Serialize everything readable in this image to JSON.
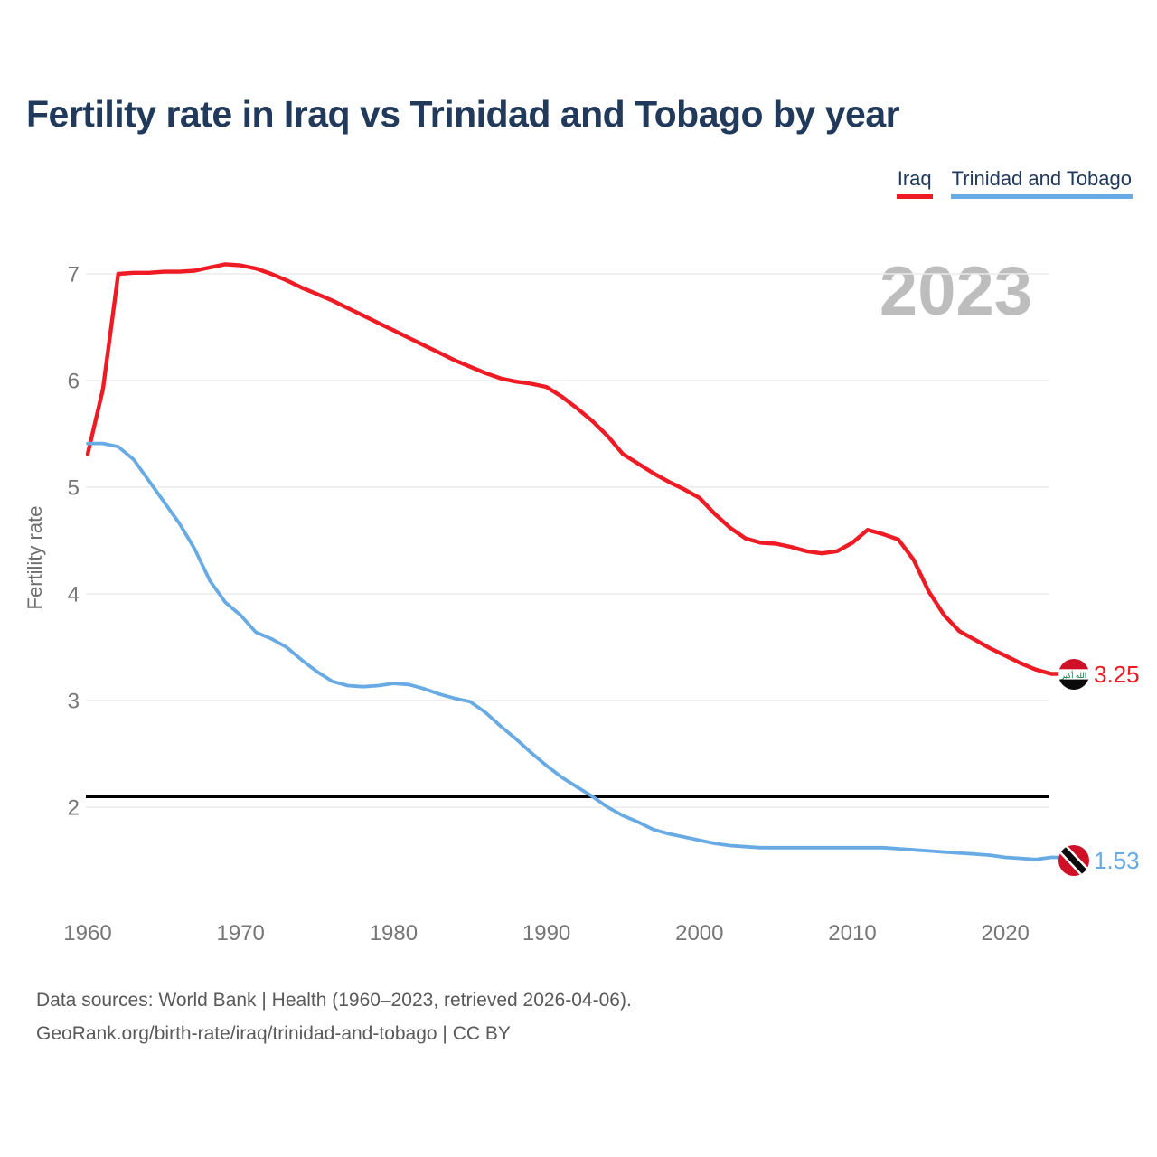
{
  "header": {
    "title": "Fertility rate in Iraq vs Trinidad and Tobago by year",
    "legend": [
      {
        "label": "Iraq",
        "color": "#ee1b24"
      },
      {
        "label": "Trinidad and Tobago",
        "color": "#68aae4"
      }
    ]
  },
  "footer": {
    "line1": "Data sources: World Bank | Health (1960–2023, retrieved 2026-04-06).",
    "line2": "GeoRank.org/birth-rate/iraq/trinidad-and-tobago | CC BY"
  },
  "chart_data": {
    "type": "line",
    "title": "Fertility rate in Iraq vs Trinidad and Tobago by year",
    "xlabel": "",
    "ylabel": "Fertility rate",
    "watermark": "2023",
    "grid": "horizontal",
    "legend_position": "top-right",
    "xlim": [
      1960,
      2023
    ],
    "ylim": [
      1.3,
      7.3
    ],
    "x_ticks": [
      1960,
      1970,
      1980,
      1990,
      2000,
      2010,
      2020
    ],
    "y_ticks": [
      2,
      3,
      4,
      5,
      6,
      7
    ],
    "reference_line": {
      "value": 2.1,
      "color": "#000000"
    },
    "x": [
      1960,
      1961,
      1962,
      1963,
      1964,
      1965,
      1966,
      1967,
      1968,
      1969,
      1970,
      1971,
      1972,
      1973,
      1974,
      1975,
      1976,
      1977,
      1978,
      1979,
      1980,
      1981,
      1982,
      1983,
      1984,
      1985,
      1986,
      1987,
      1988,
      1989,
      1990,
      1991,
      1992,
      1993,
      1994,
      1995,
      1996,
      1997,
      1998,
      1999,
      2000,
      2001,
      2002,
      2003,
      2004,
      2005,
      2006,
      2007,
      2008,
      2009,
      2010,
      2011,
      2012,
      2013,
      2014,
      2015,
      2016,
      2017,
      2018,
      2019,
      2020,
      2021,
      2022,
      2023
    ],
    "series": [
      {
        "name": "Iraq",
        "color": "#ee1b24",
        "end_label": "3.25",
        "flag": "iraq",
        "values": [
          5.31,
          5.92,
          7.0,
          7.01,
          7.01,
          7.02,
          7.02,
          7.03,
          7.06,
          7.09,
          7.08,
          7.05,
          7.0,
          6.94,
          6.87,
          6.81,
          6.75,
          6.68,
          6.61,
          6.54,
          6.47,
          6.4,
          6.33,
          6.26,
          6.19,
          6.13,
          6.07,
          6.02,
          5.99,
          5.97,
          5.94,
          5.85,
          5.74,
          5.62,
          5.48,
          5.31,
          5.22,
          5.13,
          5.05,
          4.98,
          4.9,
          4.75,
          4.62,
          4.52,
          4.48,
          4.47,
          4.44,
          4.4,
          4.38,
          4.4,
          4.48,
          4.6,
          4.56,
          4.51,
          4.32,
          4.02,
          3.8,
          3.65,
          3.57,
          3.49,
          3.42,
          3.35,
          3.29,
          3.25
        ]
      },
      {
        "name": "Trinidad and Tobago",
        "color": "#68aae4",
        "end_label": "1.53",
        "flag": "trinidad-and-tobago",
        "values": [
          5.41,
          5.41,
          5.38,
          5.26,
          5.06,
          4.86,
          4.66,
          4.42,
          4.12,
          3.92,
          3.8,
          3.64,
          3.58,
          3.5,
          3.38,
          3.27,
          3.18,
          3.14,
          3.13,
          3.14,
          3.16,
          3.15,
          3.11,
          3.06,
          3.02,
          2.99,
          2.89,
          2.76,
          2.64,
          2.51,
          2.39,
          2.28,
          2.19,
          2.1,
          2.0,
          1.92,
          1.86,
          1.79,
          1.75,
          1.72,
          1.69,
          1.66,
          1.64,
          1.63,
          1.62,
          1.62,
          1.62,
          1.62,
          1.62,
          1.62,
          1.62,
          1.62,
          1.62,
          1.61,
          1.6,
          1.59,
          1.58,
          1.57,
          1.56,
          1.55,
          1.53,
          1.52,
          1.51,
          1.53
        ]
      }
    ]
  }
}
